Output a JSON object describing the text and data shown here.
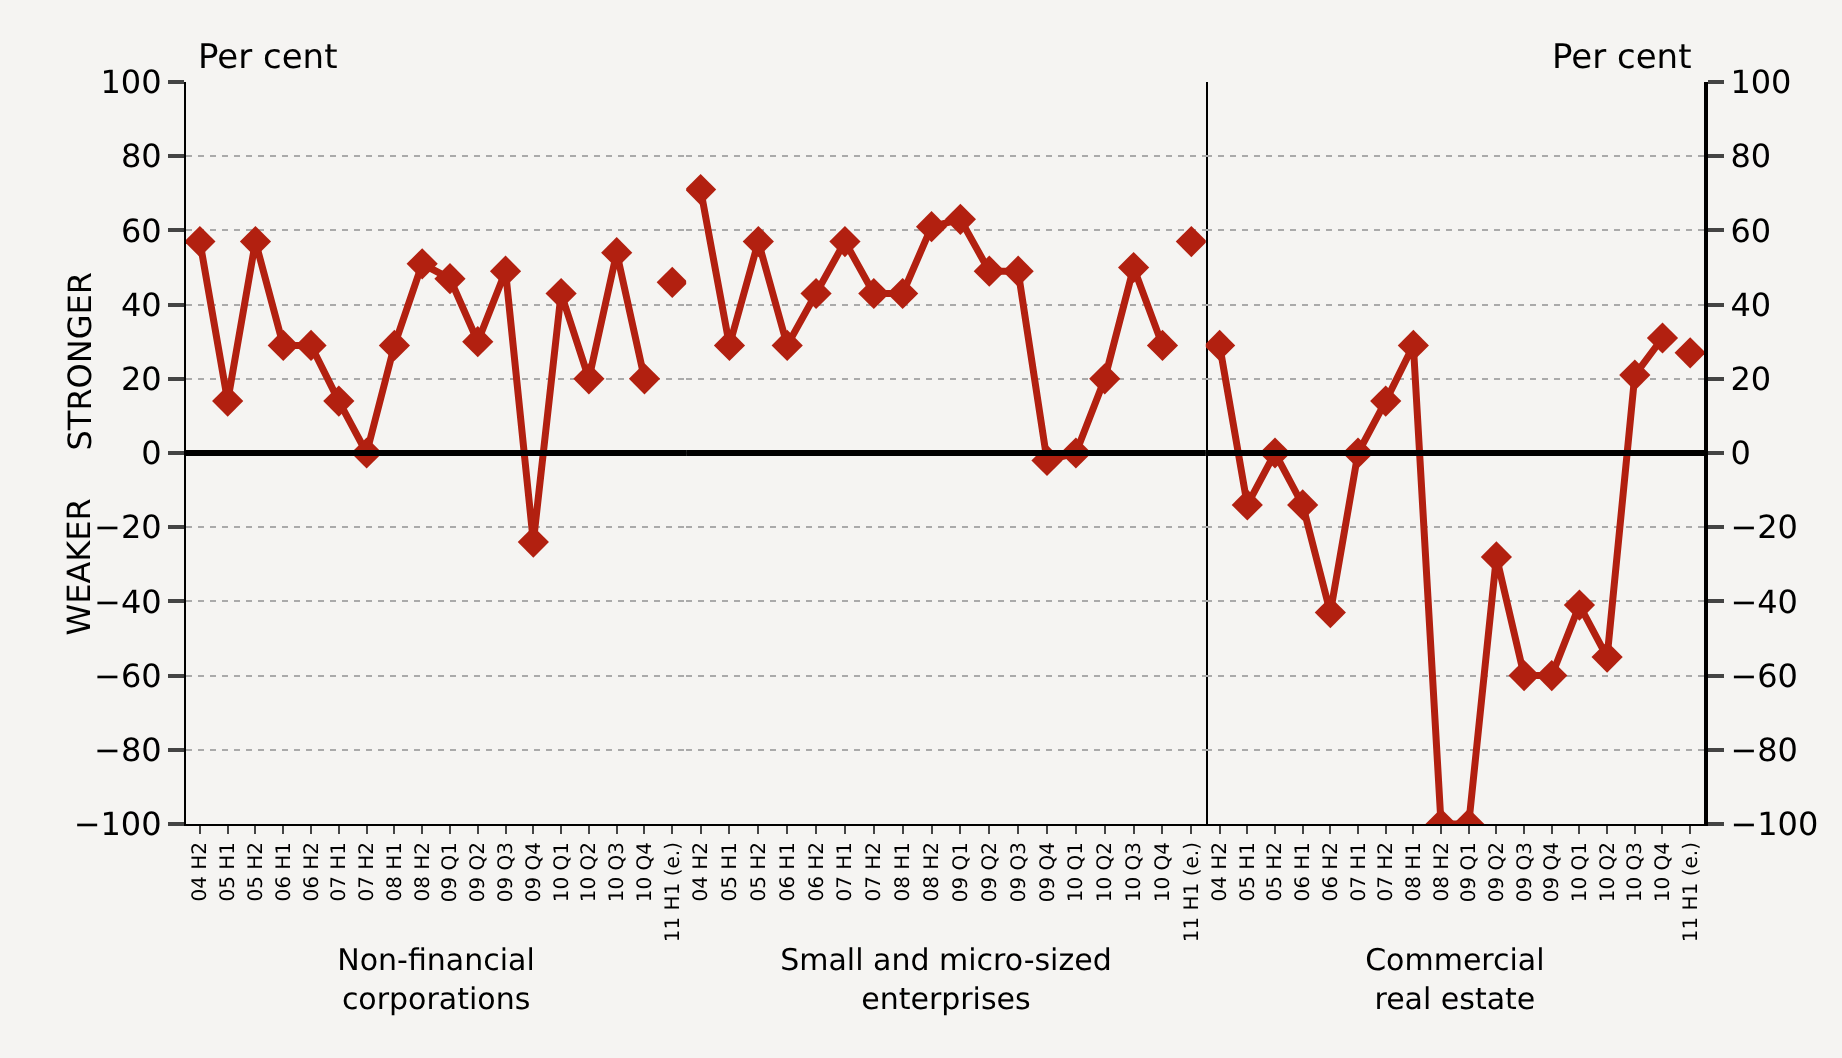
{
  "chart_data": [
    {
      "type": "line",
      "xlabel": "Non-financial corporations",
      "ylabel": "Per cent",
      "annotations": [
        "STRONGER",
        "WEAKER"
      ],
      "categories": [
        "04 H2",
        "05 H1",
        "05 H2",
        "06 H1",
        "06 H2",
        "07 H1",
        "07 H2",
        "08 H1",
        "08 H2",
        "09 Q1",
        "09 Q2",
        "09 Q3",
        "09 Q4",
        "10 Q1",
        "10 Q2",
        "10 Q3",
        "10 Q4",
        "11 H1 (e.)"
      ],
      "series": [
        {
          "color": "#b22010",
          "values": [
            57,
            14,
            57,
            29,
            29,
            14,
            0,
            29,
            51,
            47,
            30,
            49,
            -24,
            43,
            20,
            54,
            20,
            null
          ]
        },
        {
          "type": "scatter",
          "color": "#b22010",
          "values": [
            null,
            null,
            null,
            null,
            null,
            null,
            null,
            null,
            null,
            null,
            null,
            null,
            null,
            null,
            null,
            null,
            null,
            46
          ]
        }
      ],
      "ylim": [
        -100,
        100
      ],
      "yticks": [
        -100,
        -80,
        -60,
        -40,
        -20,
        0,
        20,
        40,
        60,
        80,
        100
      ],
      "grid": "y",
      "marker": "diamond",
      "ref_lines": [
        {
          "axis": "y",
          "value": 0,
          "color": "#000000"
        }
      ]
    },
    {
      "type": "line",
      "xlabel": "Small and micro-sized enterprises",
      "categories": [
        "04 H2",
        "05 H1",
        "05 H2",
        "06 H1",
        "06 H2",
        "07 H1",
        "07 H2",
        "08 H1",
        "08 H2",
        "09 Q1",
        "09 Q2",
        "09 Q3",
        "09 Q4",
        "10 Q1",
        "10 Q2",
        "10 Q3",
        "10 Q4",
        "11 H1 (e.)"
      ],
      "series": [
        {
          "color": "#b22010",
          "values": [
            71,
            29,
            57,
            29,
            43,
            57,
            43,
            43,
            61,
            63,
            49,
            49,
            -2,
            0,
            20,
            50,
            29,
            null
          ]
        },
        {
          "type": "scatter",
          "color": "#b22010",
          "values": [
            null,
            null,
            null,
            null,
            null,
            null,
            null,
            null,
            null,
            null,
            null,
            null,
            null,
            null,
            null,
            null,
            null,
            57
          ]
        }
      ],
      "ylim": [
        -100,
        100
      ],
      "yticks": [
        -100,
        -80,
        -60,
        -40,
        -20,
        0,
        20,
        40,
        60,
        80,
        100
      ],
      "grid": "y",
      "marker": "diamond",
      "tick_labels": "x",
      "ref_lines": [
        {
          "axis": "y",
          "value": 0,
          "color": "#000000"
        }
      ]
    },
    {
      "type": "line",
      "xlabel": "Commercial real estate",
      "ylabel": "Per cent",
      "categories": [
        "04 H2",
        "05 H1",
        "05 H2",
        "06 H1",
        "06 H2",
        "07 H1",
        "07 H2",
        "08 H1",
        "08 H2",
        "09 Q1",
        "09 Q2",
        "09 Q3",
        "09 Q4",
        "10 Q1",
        "10 Q2",
        "10 Q3",
        "10 Q4",
        "11 H1 (e.)"
      ],
      "series": [
        {
          "color": "#b22010",
          "values": [
            29,
            -14,
            0,
            -14,
            -43,
            0,
            14,
            29,
            -100,
            -100,
            -28,
            -60,
            -60,
            -41,
            -55,
            21,
            31,
            null
          ]
        },
        {
          "type": "scatter",
          "color": "#b22010",
          "values": [
            null,
            null,
            null,
            null,
            null,
            null,
            null,
            null,
            null,
            null,
            null,
            null,
            null,
            null,
            null,
            null,
            null,
            27
          ]
        }
      ],
      "ylim": [
        -100,
        100
      ],
      "yticks": [
        -100,
        -80,
        -60,
        -40,
        -20,
        0,
        20,
        40,
        60,
        80,
        100
      ],
      "grid": "y",
      "marker": "diamond",
      "ref_lines": [
        {
          "axis": "y",
          "value": 0,
          "color": "#000000"
        }
      ]
    }
  ]
}
